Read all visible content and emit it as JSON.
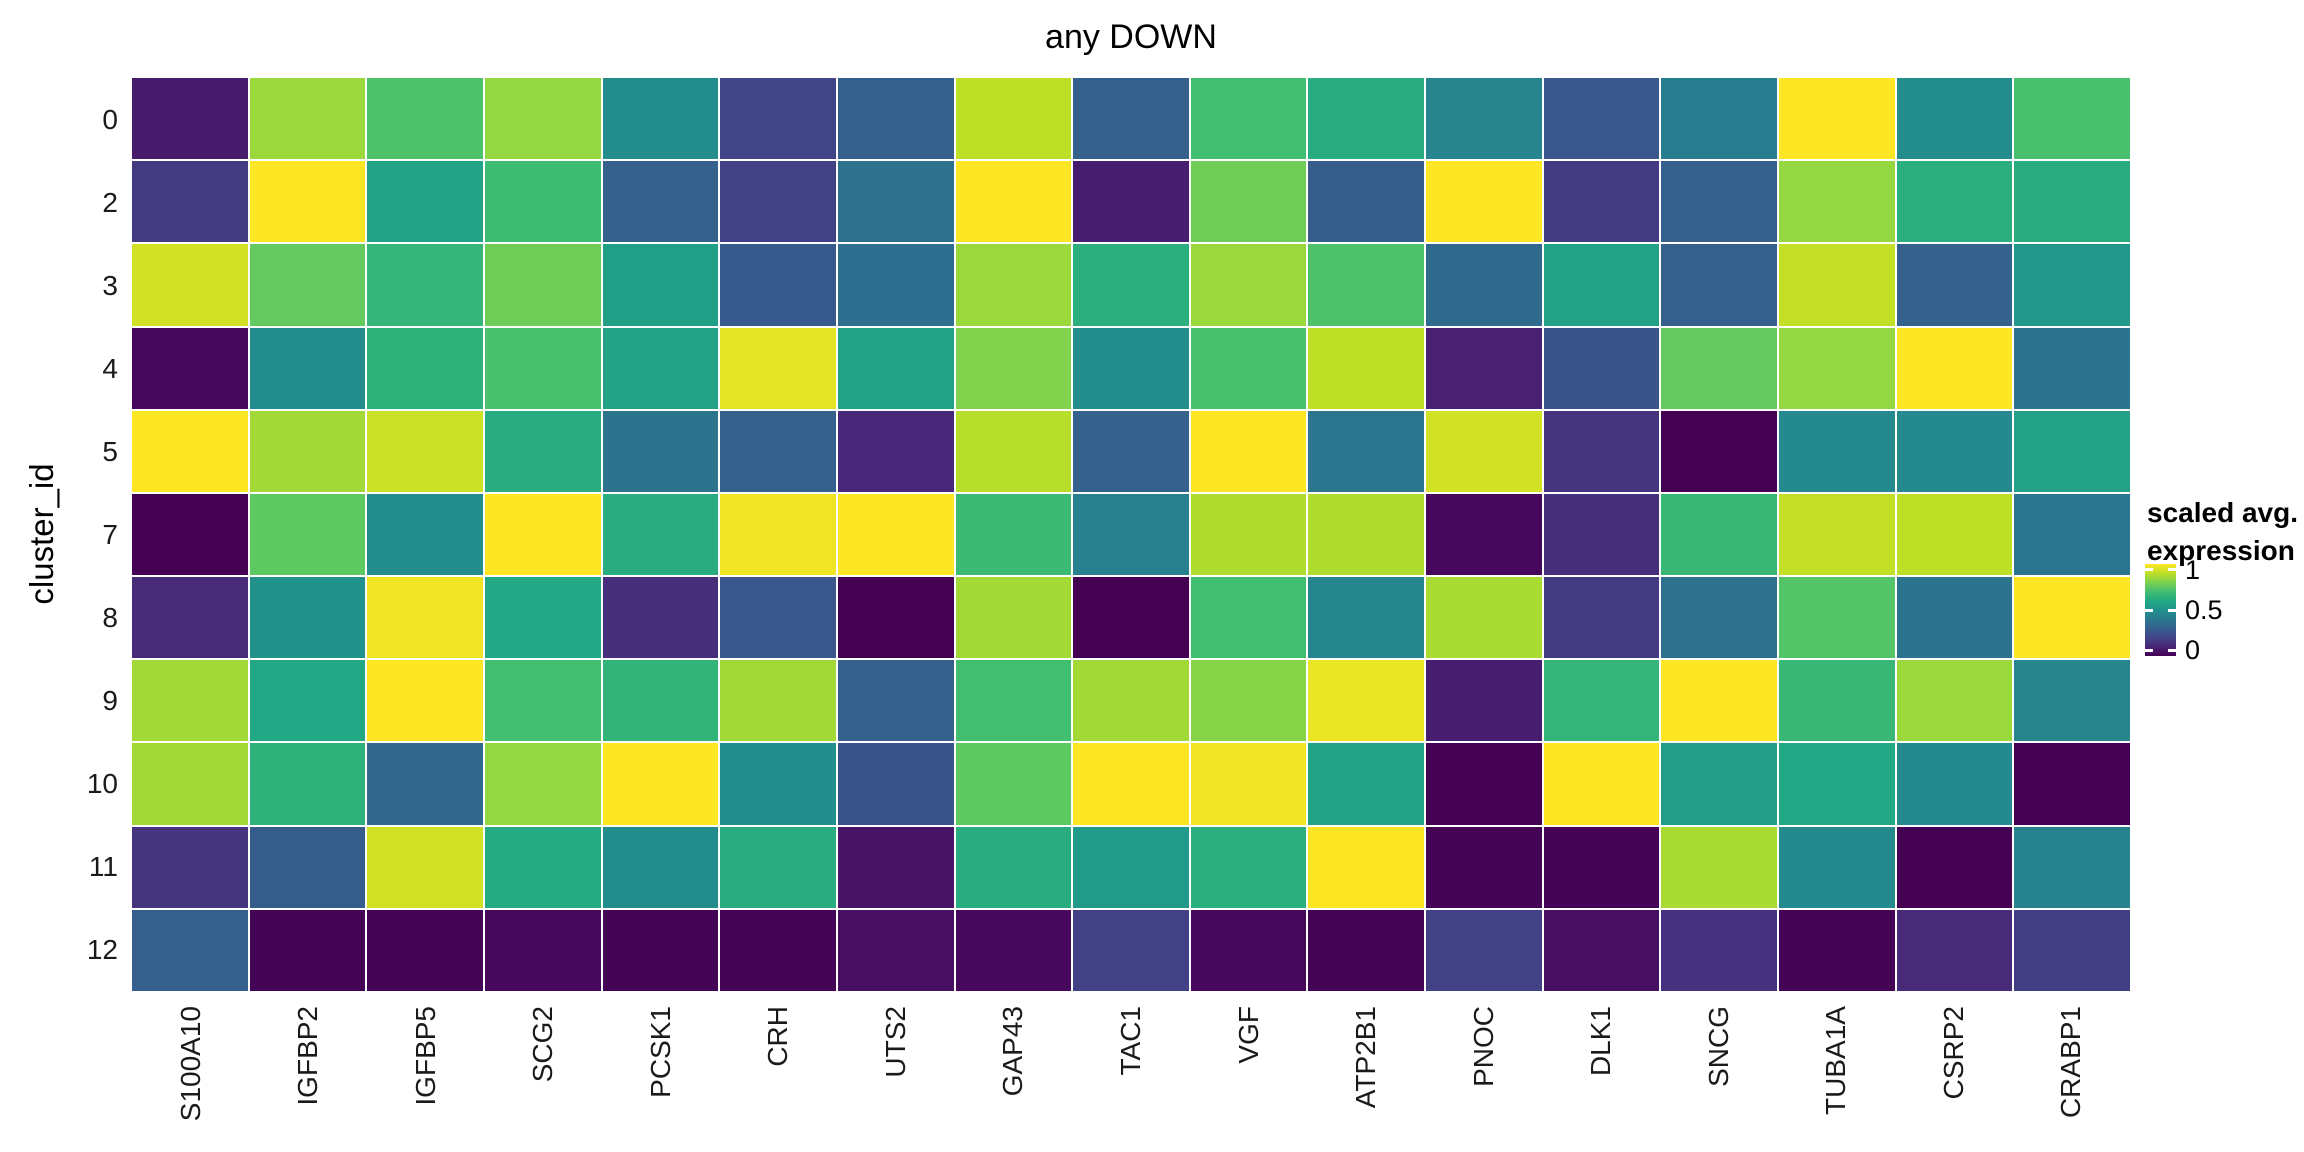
{
  "page": {
    "background": "#ffffff",
    "text_color": "#000000"
  },
  "chart_data": {
    "type": "heatmap",
    "title": "any DOWN",
    "xlabel": "",
    "ylabel": "cluster_id",
    "rows": [
      "0",
      "2",
      "3",
      "4",
      "5",
      "7",
      "8",
      "9",
      "10",
      "11",
      "12"
    ],
    "columns": [
      "S100A10",
      "IGFBP2",
      "IGFBP5",
      "SCG2",
      "PCSK1",
      "CRH",
      "UTS2",
      "GAP43",
      "TAC1",
      "VGF",
      "ATP2B1",
      "PNOC",
      "DLK1",
      "SNCG",
      "TUBA1A",
      "CSRP2",
      "CRABP1"
    ],
    "values": [
      [
        0.07,
        0.85,
        0.72,
        0.84,
        0.48,
        0.2,
        0.3,
        0.9,
        0.3,
        0.7,
        0.62,
        0.45,
        0.27,
        0.42,
        1.0,
        0.48,
        0.71
      ],
      [
        0.17,
        1.0,
        0.58,
        0.69,
        0.31,
        0.19,
        0.37,
        1.0,
        0.08,
        0.78,
        0.29,
        1.0,
        0.17,
        0.3,
        0.84,
        0.63,
        0.62
      ],
      [
        0.93,
        0.76,
        0.66,
        0.78,
        0.56,
        0.28,
        0.36,
        0.85,
        0.63,
        0.85,
        0.72,
        0.34,
        0.57,
        0.3,
        0.91,
        0.31,
        0.53
      ],
      [
        0.02,
        0.48,
        0.64,
        0.71,
        0.57,
        0.96,
        0.58,
        0.81,
        0.48,
        0.71,
        0.9,
        0.09,
        0.26,
        0.76,
        0.84,
        1.0,
        0.38
      ],
      [
        1.0,
        0.86,
        0.92,
        0.62,
        0.38,
        0.31,
        0.11,
        0.89,
        0.31,
        1.0,
        0.39,
        0.93,
        0.15,
        0.0,
        0.47,
        0.47,
        0.57
      ],
      [
        0.0,
        0.75,
        0.48,
        1.0,
        0.62,
        0.98,
        1.0,
        0.68,
        0.43,
        0.88,
        0.88,
        0.02,
        0.13,
        0.67,
        0.91,
        0.9,
        0.39
      ],
      [
        0.12,
        0.5,
        0.98,
        0.6,
        0.13,
        0.27,
        0.0,
        0.86,
        0.0,
        0.7,
        0.46,
        0.87,
        0.17,
        0.37,
        0.73,
        0.38,
        1.0
      ],
      [
        0.86,
        0.6,
        1.0,
        0.7,
        0.65,
        0.86,
        0.3,
        0.7,
        0.86,
        0.82,
        0.97,
        0.08,
        0.66,
        1.0,
        0.67,
        0.85,
        0.45
      ],
      [
        0.86,
        0.64,
        0.33,
        0.84,
        1.0,
        0.49,
        0.26,
        0.75,
        1.0,
        0.98,
        0.58,
        0.0,
        1.0,
        0.55,
        0.6,
        0.47,
        0.0
      ],
      [
        0.15,
        0.29,
        0.93,
        0.61,
        0.48,
        0.62,
        0.05,
        0.62,
        0.54,
        0.63,
        1.0,
        0.01,
        0.01,
        0.87,
        0.47,
        0.0,
        0.44
      ],
      [
        0.3,
        0.01,
        0.01,
        0.02,
        0.01,
        0.01,
        0.04,
        0.02,
        0.19,
        0.02,
        0.01,
        0.19,
        0.04,
        0.14,
        0.01,
        0.12,
        0.18
      ]
    ],
    "value_range": [
      0,
      1
    ],
    "grid_gap_color": "#ffffff",
    "colormap": {
      "name": "viridis",
      "anchors": [
        [
          0.0,
          "#440154"
        ],
        [
          0.1,
          "#482576"
        ],
        [
          0.2,
          "#414487"
        ],
        [
          0.3,
          "#355f8d"
        ],
        [
          0.4,
          "#2a788e"
        ],
        [
          0.5,
          "#21918c"
        ],
        [
          0.6,
          "#22a884"
        ],
        [
          0.7,
          "#42be71"
        ],
        [
          0.8,
          "#7ad151"
        ],
        [
          0.9,
          "#bddf26"
        ],
        [
          1.0,
          "#fde725"
        ]
      ]
    },
    "legend": {
      "title_line1": "scaled avg.",
      "title_line2": "expression",
      "ticks": [
        {
          "label": "1",
          "value": 1
        },
        {
          "label": "0.5",
          "value": 0.5
        },
        {
          "label": "0",
          "value": 0
        }
      ]
    }
  }
}
